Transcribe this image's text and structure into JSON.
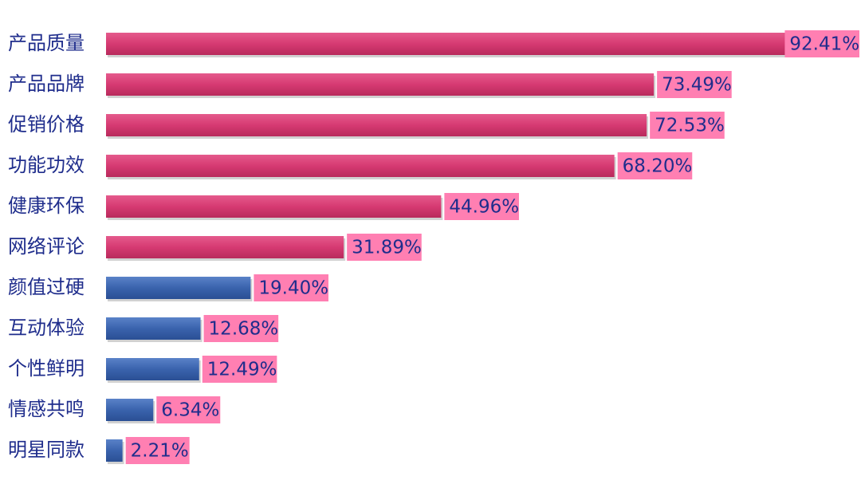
{
  "chart_data": {
    "type": "bar",
    "orientation": "horizontal",
    "title": "",
    "xlabel": "",
    "ylabel": "",
    "xlim": [
      0,
      100
    ],
    "grid": false,
    "legend": "none",
    "categories": [
      "产品质量",
      "产品品牌",
      "促销价格",
      "功能功效",
      "健康环保",
      "网络评论",
      "颜值过硬",
      "互动体验",
      "个性鲜明",
      "情感共鸣",
      "明星同款"
    ],
    "values": [
      92.41,
      73.49,
      72.53,
      68.2,
      44.96,
      31.89,
      19.4,
      12.68,
      12.49,
      6.34,
      2.21
    ],
    "value_labels": [
      "92.41%",
      "73.49%",
      "72.53%",
      "68.20%",
      "44.96%",
      "31.89%",
      "19.40%",
      "12.68%",
      "12.49%",
      "6.34%",
      "2.21%"
    ],
    "highlight_count": 6,
    "colors": {
      "highlight_bar": "#d63a72",
      "other_bar": "#3a63ad",
      "label_box": "#ff7fb2",
      "text": "#1f2d8c"
    }
  }
}
